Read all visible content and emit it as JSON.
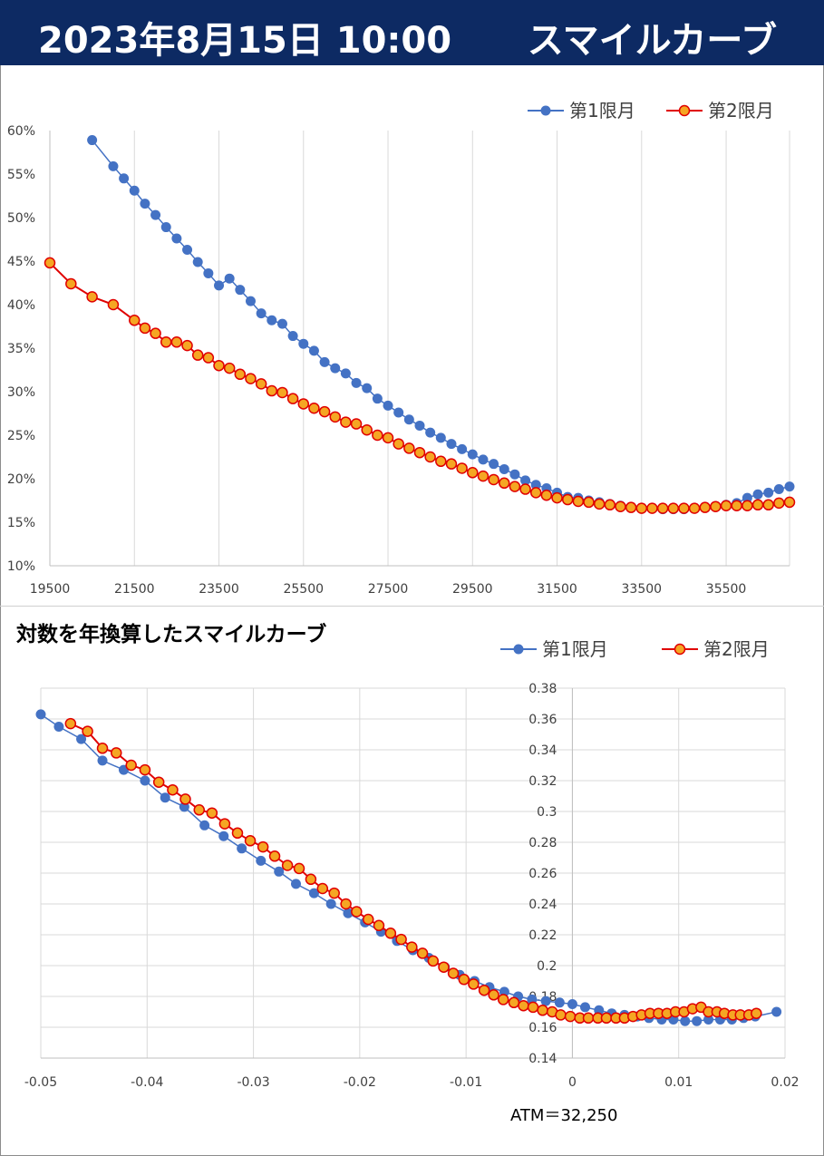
{
  "header": {
    "date": "2023年8月15日 10:00",
    "title": "スマイルカーブ"
  },
  "colors": {
    "header_bg": "#0d2a63",
    "series1": "#4472c4",
    "series2_line": "#e00000",
    "series2_fill": "#f5a623",
    "grid": "#d9d9d9"
  },
  "chart_data": [
    {
      "type": "line",
      "title": "",
      "xlabel": "",
      "ylabel": "",
      "xlim": [
        19500,
        37000
      ],
      "ylim": [
        0.1,
        0.6
      ],
      "x_ticks": [
        19500,
        21500,
        23500,
        25500,
        27500,
        29500,
        31500,
        33500,
        35500
      ],
      "x_tick_labels": [
        "19500",
        "21500",
        "23500",
        "25500",
        "27500",
        "29500",
        "31500",
        "33500",
        "35500"
      ],
      "y_ticks": [
        0.1,
        0.15,
        0.2,
        0.25,
        0.3,
        0.35,
        0.4,
        0.45,
        0.5,
        0.55,
        0.6
      ],
      "y_tick_labels": [
        "10%",
        "15%",
        "20%",
        "25%",
        "30%",
        "35%",
        "40%",
        "45%",
        "50%",
        "55%",
        "60%"
      ],
      "grid": "vertical",
      "legend": "top-right",
      "series": [
        {
          "name": "第1限月",
          "x": [
            20500,
            21000,
            21250,
            21500,
            21750,
            22000,
            22250,
            22500,
            22750,
            23000,
            23250,
            23500,
            23750,
            24000,
            24250,
            24500,
            24750,
            25000,
            25250,
            25500,
            25750,
            26000,
            26250,
            26500,
            26750,
            27000,
            27250,
            27500,
            27750,
            28000,
            28250,
            28500,
            28750,
            29000,
            29250,
            29500,
            29750,
            30000,
            30250,
            30500,
            30750,
            31000,
            31250,
            31500,
            31750,
            32000,
            32250,
            32500,
            32750,
            33000,
            33250,
            33500,
            33750,
            34000,
            34250,
            34500,
            34750,
            35000,
            35250,
            35500,
            35750,
            36000,
            36250,
            36500,
            36750,
            37000
          ],
          "values": [
            0.589,
            0.559,
            0.545,
            0.531,
            0.516,
            0.503,
            0.489,
            0.476,
            0.463,
            0.449,
            0.436,
            0.422,
            0.43,
            0.417,
            0.404,
            0.39,
            0.382,
            0.378,
            0.364,
            0.355,
            0.347,
            0.334,
            0.327,
            0.321,
            0.31,
            0.304,
            0.292,
            0.284,
            0.276,
            0.268,
            0.261,
            0.253,
            0.247,
            0.24,
            0.234,
            0.228,
            0.222,
            0.217,
            0.211,
            0.205,
            0.198,
            0.193,
            0.189,
            0.184,
            0.179,
            0.178,
            0.175,
            0.173,
            0.171,
            0.169,
            0.167,
            0.166,
            0.166,
            0.165,
            0.165,
            0.165,
            0.166,
            0.167,
            0.168,
            0.17,
            0.172,
            0.178,
            0.182,
            0.184,
            0.188,
            0.191
          ]
        },
        {
          "name": "第2限月",
          "x": [
            19500,
            20000,
            20500,
            21000,
            21500,
            21750,
            22000,
            22250,
            22500,
            22750,
            23000,
            23250,
            23500,
            23750,
            24000,
            24250,
            24500,
            24750,
            25000,
            25250,
            25500,
            25750,
            26000,
            26250,
            26500,
            26750,
            27000,
            27250,
            27500,
            27750,
            28000,
            28250,
            28500,
            28750,
            29000,
            29250,
            29500,
            29750,
            30000,
            30250,
            30500,
            30750,
            31000,
            31250,
            31500,
            31750,
            32000,
            32250,
            32500,
            32750,
            33000,
            33250,
            33500,
            33750,
            34000,
            34250,
            34500,
            34750,
            35000,
            35250,
            35500,
            35750,
            36000,
            36250,
            36500,
            36750,
            37000
          ],
          "values": [
            0.448,
            0.424,
            0.409,
            0.4,
            0.382,
            0.373,
            0.367,
            0.357,
            0.357,
            0.353,
            0.342,
            0.339,
            0.33,
            0.327,
            0.32,
            0.315,
            0.309,
            0.301,
            0.299,
            0.292,
            0.286,
            0.281,
            0.277,
            0.271,
            0.265,
            0.263,
            0.256,
            0.25,
            0.247,
            0.24,
            0.235,
            0.23,
            0.225,
            0.22,
            0.217,
            0.212,
            0.207,
            0.203,
            0.199,
            0.195,
            0.191,
            0.188,
            0.184,
            0.181,
            0.178,
            0.176,
            0.174,
            0.173,
            0.171,
            0.17,
            0.168,
            0.167,
            0.166,
            0.166,
            0.166,
            0.166,
            0.166,
            0.166,
            0.167,
            0.168,
            0.169,
            0.169,
            0.169,
            0.17,
            0.17,
            0.172,
            0.173
          ]
        }
      ]
    },
    {
      "type": "line",
      "title": "対数を年換算したスマイルカーブ",
      "xlabel": "",
      "ylabel": "",
      "xlim": [
        -0.05,
        0.02
      ],
      "ylim": [
        0.14,
        0.38
      ],
      "x_ticks": [
        -0.05,
        -0.04,
        -0.03,
        -0.02,
        -0.01,
        0,
        0.01,
        0.02
      ],
      "x_tick_labels": [
        "-0.05",
        "-0.04",
        "-0.03",
        "-0.02",
        "-0.01",
        "0",
        "0.01",
        "0.02"
      ],
      "y_ticks": [
        0.14,
        0.16,
        0.18,
        0.2,
        0.22,
        0.24,
        0.26,
        0.28,
        0.3,
        0.32,
        0.34,
        0.36,
        0.38
      ],
      "y_tick_labels": [
        "0.14",
        "0.16",
        "0.18",
        "0.2",
        "0.22",
        "0.24",
        "0.26",
        "0.28",
        "0.3",
        "0.32",
        "0.34",
        "0.36",
        "0.38"
      ],
      "grid": "both",
      "legend": "top-right",
      "note": "ATM＝32,250",
      "series": [
        {
          "name": "第1限月",
          "x": [
            -0.05,
            -0.0483,
            -0.0462,
            -0.0442,
            -0.0422,
            -0.0402,
            -0.0383,
            -0.0365,
            -0.0346,
            -0.0328,
            -0.0311,
            -0.0293,
            -0.0276,
            -0.026,
            -0.0243,
            -0.0227,
            -0.0211,
            -0.0195,
            -0.018,
            -0.0165,
            -0.015,
            -0.0135,
            -0.012,
            -0.0106,
            -0.0092,
            -0.0078,
            -0.0064,
            -0.0051,
            -0.0038,
            -0.0025,
            -0.0012,
            0.0,
            0.0012,
            0.0025,
            0.0037,
            0.0049,
            0.0061,
            0.0072,
            0.0084,
            0.0095,
            0.0106,
            0.0117,
            0.0128,
            0.0139,
            0.015,
            0.0161,
            0.0172,
            0.0192
          ],
          "values": [
            0.363,
            0.355,
            0.347,
            0.333,
            0.327,
            0.32,
            0.309,
            0.303,
            0.291,
            0.284,
            0.276,
            0.268,
            0.261,
            0.253,
            0.247,
            0.24,
            0.234,
            0.228,
            0.222,
            0.216,
            0.21,
            0.205,
            0.199,
            0.194,
            0.19,
            0.186,
            0.183,
            0.18,
            0.178,
            0.177,
            0.176,
            0.175,
            0.173,
            0.171,
            0.169,
            0.168,
            0.167,
            0.166,
            0.165,
            0.165,
            0.164,
            0.164,
            0.165,
            0.165,
            0.165,
            0.166,
            0.167,
            0.17
          ]
        },
        {
          "name": "第2限月",
          "x": [
            -0.0472,
            -0.0456,
            -0.0442,
            -0.0429,
            -0.0415,
            -0.0402,
            -0.0389,
            -0.0376,
            -0.0364,
            -0.0351,
            -0.0339,
            -0.0327,
            -0.0315,
            -0.0303,
            -0.0291,
            -0.028,
            -0.0268,
            -0.0257,
            -0.0246,
            -0.0235,
            -0.0224,
            -0.0213,
            -0.0203,
            -0.0192,
            -0.0182,
            -0.0171,
            -0.0161,
            -0.0151,
            -0.0141,
            -0.0131,
            -0.0121,
            -0.0112,
            -0.0102,
            -0.0093,
            -0.0083,
            -0.0074,
            -0.0065,
            -0.0055,
            -0.0046,
            -0.0037,
            -0.0028,
            -0.0019,
            -0.0011,
            -0.0002,
            0.0007,
            0.0015,
            0.0024,
            0.0032,
            0.0041,
            0.0049,
            0.0057,
            0.0065,
            0.0073,
            0.0081,
            0.0089,
            0.0097,
            0.0105,
            0.0113,
            0.0121,
            0.0128,
            0.0136,
            0.0143,
            0.0151,
            0.0158,
            0.0166,
            0.0173
          ],
          "values": [
            0.357,
            0.352,
            0.341,
            0.338,
            0.33,
            0.327,
            0.319,
            0.314,
            0.308,
            0.301,
            0.299,
            0.292,
            0.286,
            0.281,
            0.277,
            0.271,
            0.265,
            0.263,
            0.256,
            0.25,
            0.247,
            0.24,
            0.235,
            0.23,
            0.226,
            0.221,
            0.217,
            0.212,
            0.208,
            0.203,
            0.199,
            0.195,
            0.191,
            0.188,
            0.184,
            0.181,
            0.178,
            0.176,
            0.174,
            0.173,
            0.171,
            0.17,
            0.168,
            0.167,
            0.166,
            0.166,
            0.166,
            0.166,
            0.166,
            0.166,
            0.167,
            0.168,
            0.169,
            0.169,
            0.169,
            0.17,
            0.17,
            0.172,
            0.173,
            0.17,
            0.17,
            0.169,
            0.168,
            0.168,
            0.168,
            0.169
          ]
        }
      ]
    }
  ]
}
